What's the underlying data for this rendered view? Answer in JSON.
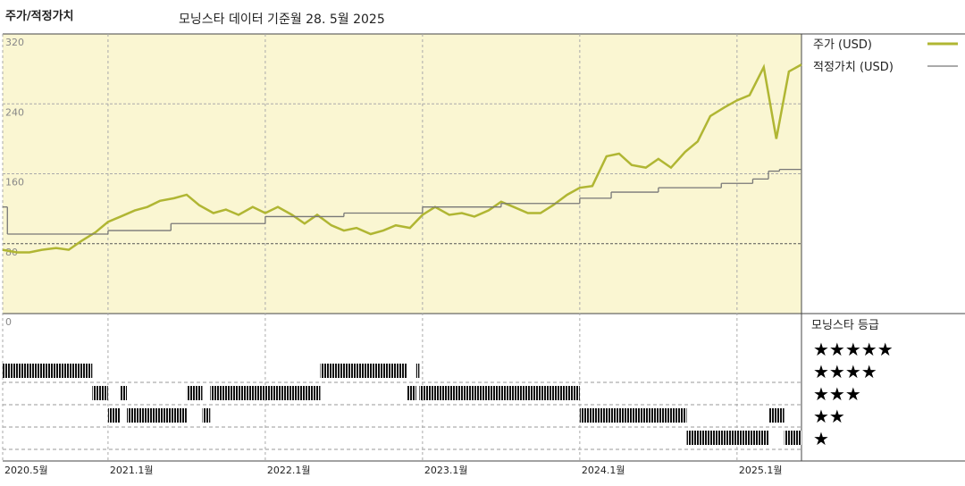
{
  "chart_data": {
    "type": "line",
    "title": "주가/적정가치",
    "subtitle": "모닝스타 데이터 기준월 28. 5월 2025",
    "xlim": [
      2020.33,
      2025.41
    ],
    "xticks": [
      {
        "value": 2020.33,
        "label": "2020.5월"
      },
      {
        "value": 2021.0,
        "label": "2021.1월"
      },
      {
        "value": 2022.0,
        "label": "2022.1월"
      },
      {
        "value": 2023.0,
        "label": "2023.1월"
      },
      {
        "value": 2024.0,
        "label": "2024.1월"
      },
      {
        "value": 2025.0,
        "label": "2025.1월"
      }
    ],
    "ylim": [
      0,
      320
    ],
    "yticks": [
      0,
      80,
      160,
      240,
      320
    ],
    "grid": true,
    "series": [
      {
        "name": "주가 (USD)",
        "color": "#b0b633",
        "x": [
          2020.33,
          2020.42,
          2020.5,
          2020.58,
          2020.67,
          2020.75,
          2020.83,
          2020.92,
          2021.0,
          2021.08,
          2021.17,
          2021.25,
          2021.33,
          2021.42,
          2021.5,
          2021.58,
          2021.67,
          2021.75,
          2021.83,
          2021.92,
          2022.0,
          2022.08,
          2022.17,
          2022.25,
          2022.33,
          2022.42,
          2022.5,
          2022.58,
          2022.67,
          2022.75,
          2022.83,
          2022.92,
          2023.0,
          2023.08,
          2023.17,
          2023.25,
          2023.33,
          2023.42,
          2023.5,
          2023.58,
          2023.67,
          2023.75,
          2023.83,
          2023.92,
          2024.0,
          2024.08,
          2024.17,
          2024.25,
          2024.33,
          2024.42,
          2024.5,
          2024.58,
          2024.67,
          2024.75,
          2024.83,
          2024.92,
          2025.0,
          2025.08,
          2025.17,
          2025.25,
          2025.33,
          2025.41
        ],
        "values": [
          73,
          70,
          70,
          73,
          75,
          73,
          83,
          93,
          105,
          111,
          118,
          122,
          129,
          132,
          136,
          124,
          115,
          119,
          113,
          122,
          115,
          122,
          113,
          103,
          113,
          101,
          95,
          98,
          91,
          95,
          101,
          98,
          113,
          122,
          113,
          115,
          111,
          118,
          128,
          122,
          115,
          115,
          124,
          136,
          144,
          146,
          180,
          183,
          170,
          167,
          177,
          167,
          185,
          197,
          226,
          236,
          244,
          250,
          282,
          200,
          277,
          285
        ]
      },
      {
        "name": "적정가치 (USD)",
        "color": "#777777",
        "x": [
          2020.33,
          2020.36,
          2021.0,
          2021.4,
          2022.0,
          2022.5,
          2023.0,
          2023.5,
          2024.0,
          2024.2,
          2024.5,
          2024.9,
          2025.1,
          2025.2,
          2025.27
        ],
        "values": [
          122,
          91,
          95,
          103,
          111,
          115,
          122,
          126,
          132,
          139,
          144,
          149,
          154,
          163,
          165
        ]
      }
    ],
    "ratings": {
      "name": "모닝스타 등급",
      "legend": [
        "★★★★★",
        "★★★★",
        "★★★",
        "★★",
        "★"
      ],
      "bins": [
        2020.33,
        2020.9,
        2021.0,
        2021.08,
        2021.12,
        2021.5,
        2021.6,
        2021.65,
        2022.35,
        2022.9,
        2022.96,
        2022.98,
        2024.0,
        2024.68,
        2025.2,
        2025.3,
        2025.41
      ],
      "values": [
        4,
        3,
        2,
        3,
        2,
        3,
        2,
        3,
        4,
        3,
        4,
        3,
        2,
        1,
        2,
        1
      ]
    }
  }
}
